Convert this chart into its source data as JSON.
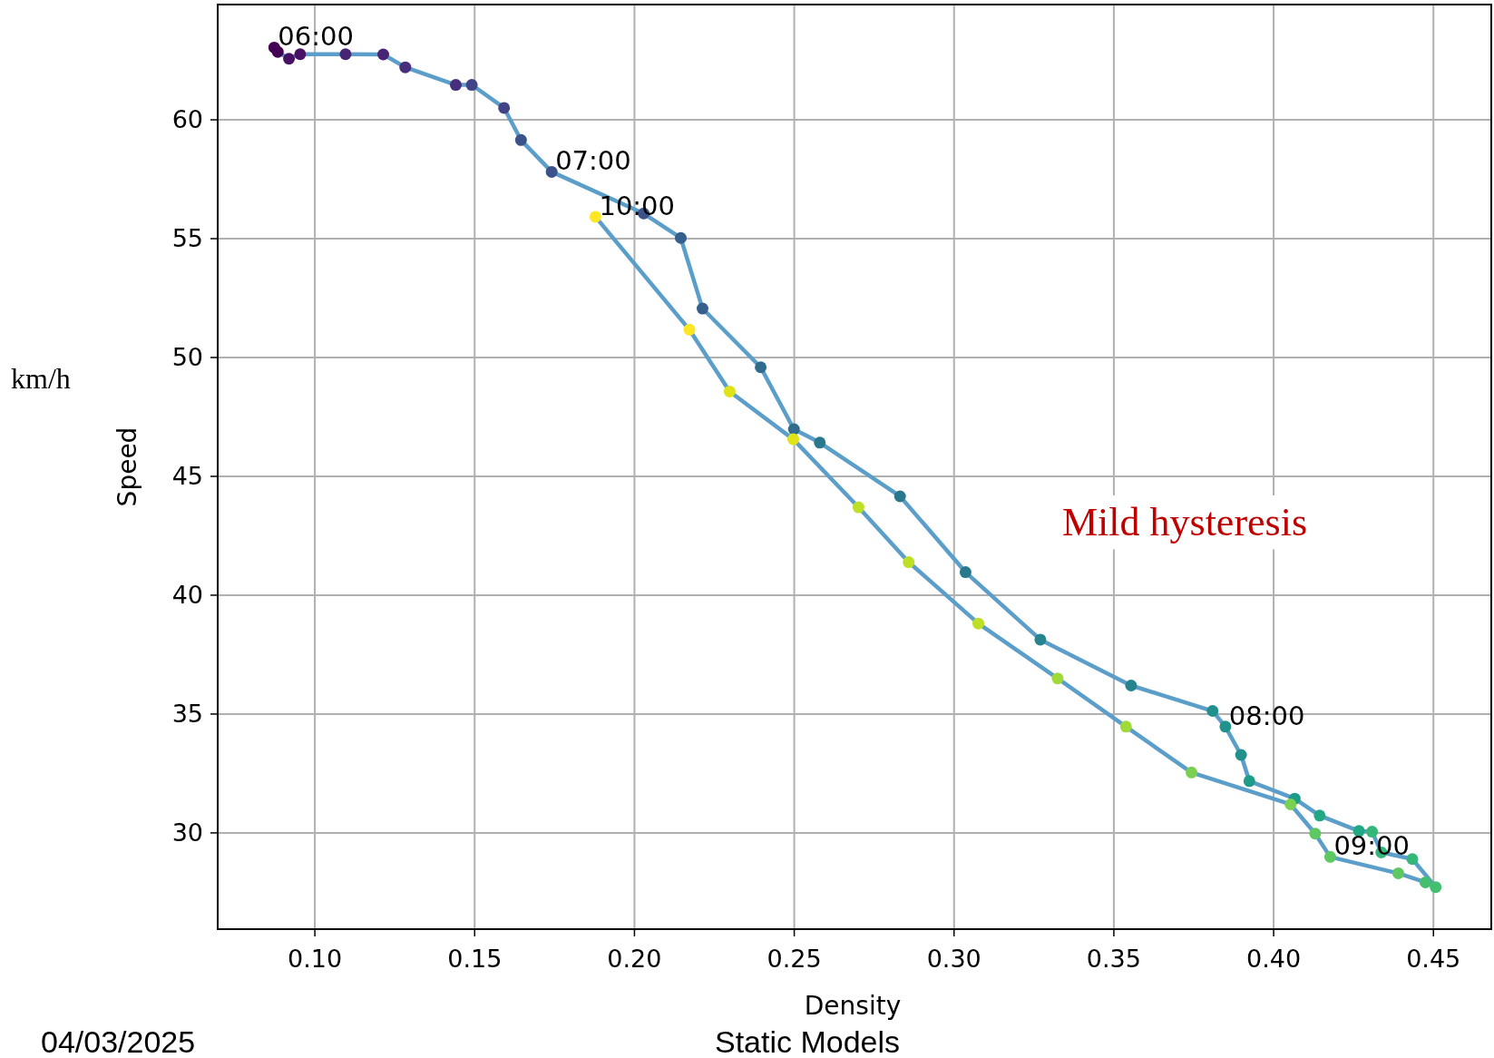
{
  "chart_data": {
    "type": "scatter",
    "xlabel": "Density",
    "ylabel": "Speed",
    "xlim": [
      0.0696,
      0.4681
    ],
    "ylim": [
      25.95,
      64.85
    ],
    "xticks": [
      {
        "value": 0.1,
        "label": "0.10"
      },
      0.15,
      {
        "value": 0.2,
        "label": "0.20"
      },
      0.25,
      {
        "value": 0.3,
        "label": "0.30"
      },
      0.35,
      {
        "value": 0.4,
        "label": "0.40"
      },
      0.45
    ],
    "yticks": [
      30,
      35,
      40,
      45,
      50,
      55,
      60
    ],
    "grid": true,
    "line_style": "solid",
    "x": [
      0.0873,
      0.0884,
      0.0919,
      0.0954,
      0.1096,
      0.1214,
      0.1283,
      0.1441,
      0.1478,
      0.1491,
      0.1592,
      0.1645,
      0.1741,
      0.2029,
      0.2145,
      0.2213,
      0.2395,
      0.2499,
      0.258,
      0.2831,
      0.3036,
      0.327,
      0.3554,
      0.3809,
      0.3849,
      0.3898,
      0.3924,
      0.4066,
      0.4144,
      0.4267,
      0.4308,
      0.4337,
      0.4434,
      0.4507,
      0.4475,
      0.439,
      0.4177,
      0.413,
      0.4053,
      0.3743,
      0.3538,
      0.3324,
      0.3076,
      0.2858,
      0.2701,
      0.2497,
      0.2298,
      0.2172,
      0.1878
    ],
    "series": [
      {
        "type": "line",
        "color": "#5b9ec9",
        "values": [
          63.04,
          62.86,
          62.57,
          62.76,
          62.76,
          62.75,
          62.21,
          61.47,
          61.47,
          61.47,
          60.5,
          59.15,
          57.81,
          56.06,
          55.03,
          52.06,
          49.59,
          46.98,
          46.42,
          44.16,
          40.97,
          38.13,
          36.2,
          35.13,
          34.47,
          33.28,
          32.18,
          31.44,
          30.73,
          30.08,
          30.05,
          29.18,
          28.9,
          27.72,
          27.92,
          28.3,
          28.99,
          29.97,
          31.2,
          32.54,
          34.47,
          36.5,
          38.81,
          41.39,
          43.7,
          46.56,
          48.57,
          51.17,
          55.92
        ]
      },
      {
        "marker": "circle",
        "values": [
          63.04,
          62.86,
          62.57,
          62.76,
          62.76,
          62.75,
          62.21,
          61.47,
          null,
          61.47,
          60.5,
          59.15,
          57.81,
          56.06,
          55.03,
          52.06,
          49.59,
          46.98,
          46.42,
          44.16,
          40.97,
          38.13,
          36.2,
          35.13,
          34.47,
          33.28,
          32.18,
          31.44,
          30.73,
          30.08,
          30.05,
          29.18,
          28.9,
          27.72,
          27.92,
          28.3,
          28.99,
          29.97,
          31.2,
          32.54,
          34.47,
          36.5,
          38.81,
          41.39,
          43.7,
          46.56,
          48.57,
          51.17,
          55.92
        ],
        "colors": [
          "#440154",
          "#440154",
          "#471164",
          "#471164",
          "#482475",
          "#482475",
          "#472f7d",
          "#472f7d",
          null,
          "#414487",
          "#414487",
          "#3b528b",
          "#3b528b",
          "#3b528b",
          "#355f8d",
          "#355f8d",
          "#2f6c8e",
          "#2f6c8e",
          "#2a788e",
          "#2a788e",
          "#2a788e",
          "#25848e",
          "#25848e",
          "#21918c",
          "#21918c",
          "#21918c",
          "#1e9c89",
          "#1e9c89",
          "#22a884",
          "#22a884",
          "#35b779",
          "#35b779",
          "#35b779",
          "#44bf70",
          "#44bf70",
          "#5ec962",
          "#5ec962",
          "#5ec962",
          "#7ad151",
          "#7ad151",
          "#9fda3a",
          "#9fda3a",
          "#bddf26",
          "#bddf26",
          "#bddf26",
          "#dfe318",
          "#dfe318",
          "#fde725",
          "#fde725"
        ]
      }
    ],
    "annotations": [
      {
        "text": "06:00",
        "x": 0.0873,
        "y": 63.04
      },
      {
        "text": "07:00",
        "x": 0.1741,
        "y": 57.81
      },
      {
        "text": "08:00",
        "x": 0.3849,
        "y": 34.47
      },
      {
        "text": "09:00",
        "x": 0.4177,
        "y": 28.99
      },
      {
        "text": "10:00",
        "x": 0.1878,
        "y": 55.92
      },
      "Mild hysteresis",
      "04/03/2025",
      "Static Models",
      "km/h"
    ]
  }
}
